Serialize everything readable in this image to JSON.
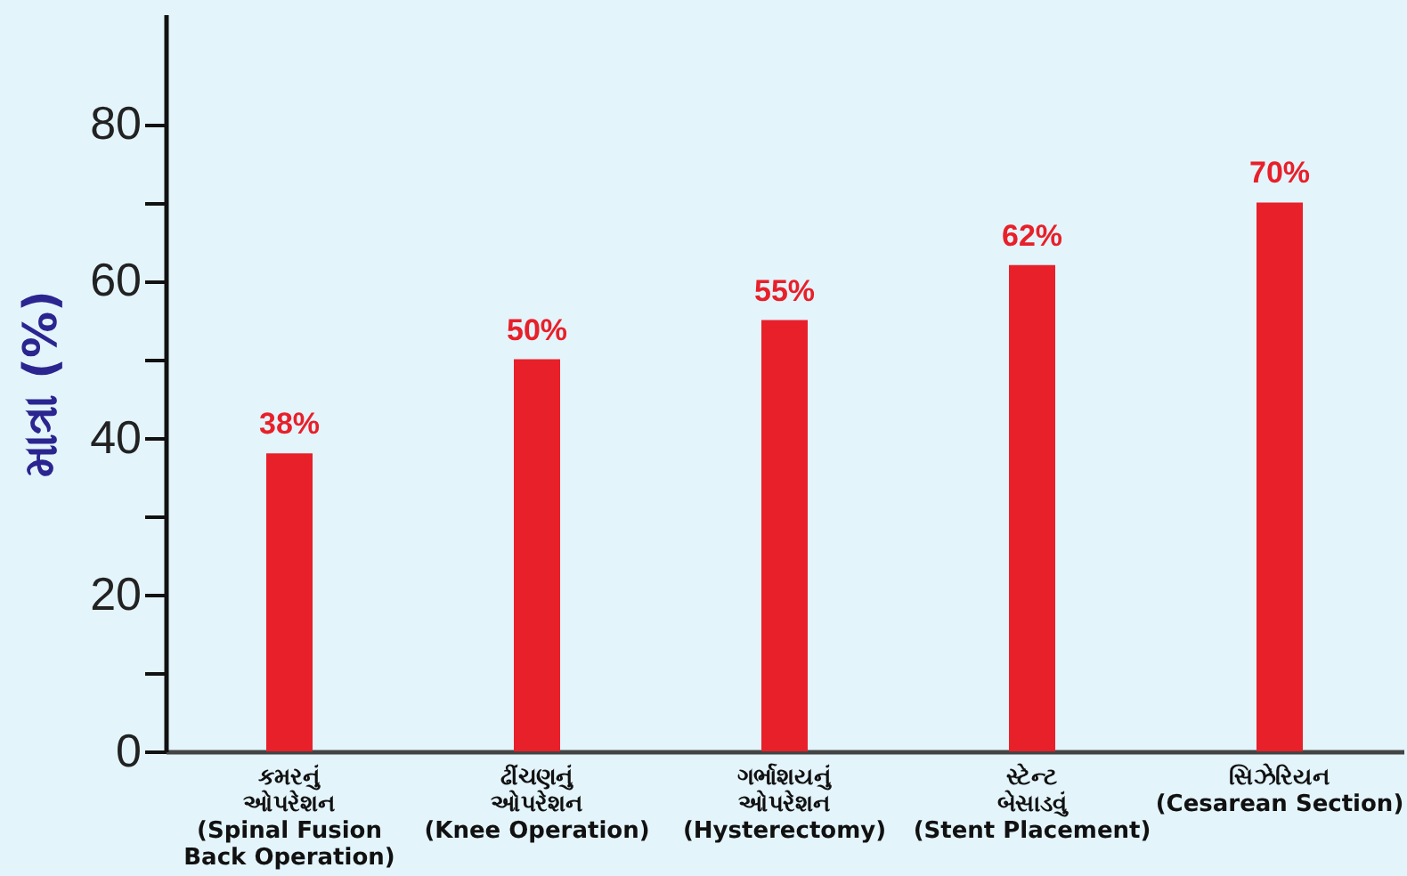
{
  "chart_data": {
    "type": "bar",
    "ylabel": "માત્રા (%)",
    "categories": [
      "કમરનું\nઓપરેશન\n(Spinal Fusion\nBack Operation)",
      "ઢીંચણનું\nઓપરેશન\n(Knee Operation)",
      "ગર્ભાશયનું\nઓપરેશન\n(Hysterectomy)",
      "સ્ટેન્ટ\nબેસાડવું\n(Stent Placement)",
      "સિઝેરિયન\n(Cesarean Section)"
    ],
    "values": [
      38,
      50,
      55,
      62,
      70
    ],
    "value_labels": [
      "38%",
      "50%",
      "55%",
      "62%",
      "70%"
    ],
    "color": "#e8202a",
    "ylim": [
      0,
      94
    ],
    "yticks": [
      0,
      {
        "value": 10,
        "label": null
      },
      20,
      {
        "value": 30,
        "label": null
      },
      40,
      {
        "value": 50,
        "label": null
      },
      60,
      {
        "value": 70,
        "label": null
      },
      80
    ],
    "grid": false
  }
}
